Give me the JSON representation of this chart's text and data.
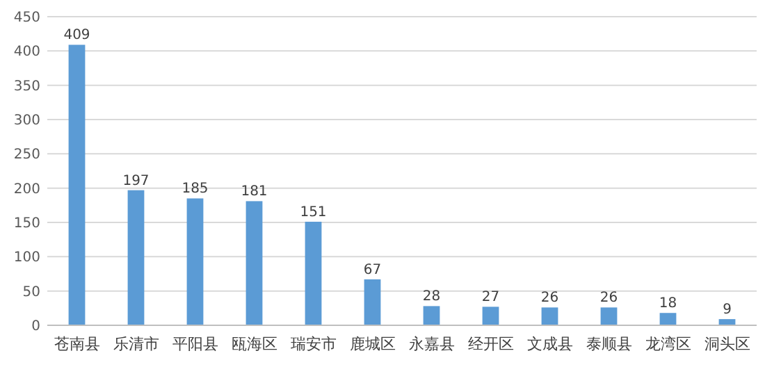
{
  "chart_data": {
    "type": "bar",
    "categories": [
      "苍南县",
      "乐清市",
      "平阳县",
      "瓯海区",
      "瑞安市",
      "鹿城区",
      "永嘉县",
      "经开区",
      "文成县",
      "泰顺县",
      "龙湾区",
      "洞头区"
    ],
    "values": [
      409,
      197,
      185,
      181,
      151,
      67,
      28,
      27,
      26,
      26,
      18,
      9
    ],
    "color": "#5b9bd5",
    "ylim": [
      0,
      450
    ],
    "yticks": [
      0,
      50,
      100,
      150,
      200,
      250,
      300,
      350,
      400,
      450
    ],
    "grid": "y",
    "data_labels": true
  }
}
